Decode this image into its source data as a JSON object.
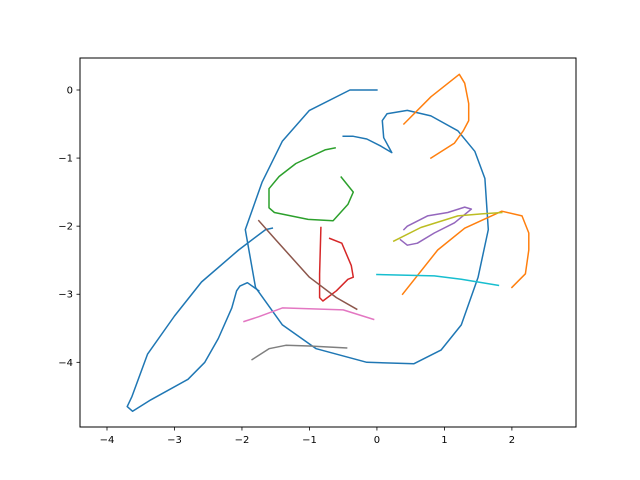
{
  "chart_data": {
    "type": "line",
    "title": "",
    "xlabel": "",
    "ylabel": "",
    "xlim": [
      -4.4,
      2.95
    ],
    "ylim": [
      -4.95,
      0.47
    ],
    "xticks": [
      -4,
      -3,
      -2,
      -1,
      0,
      1,
      2
    ],
    "xtick_labels": [
      "−4",
      "−3",
      "−2",
      "−1",
      "0",
      "1",
      "2"
    ],
    "yticks": [
      0,
      -1,
      -2,
      -3,
      -4
    ],
    "ytick_labels": [
      "0",
      "−1",
      "−2",
      "−3",
      "−4"
    ],
    "grid": false,
    "legend": "none",
    "series": [
      {
        "color": "#1f77b4",
        "points": [
          [
            0.0,
            0.0
          ],
          [
            -0.4,
            0.0
          ],
          [
            -1.0,
            -0.3
          ],
          [
            -1.4,
            -0.75
          ],
          [
            -1.7,
            -1.35
          ],
          [
            -1.95,
            -2.05
          ],
          [
            -1.8,
            -2.9
          ],
          [
            -1.4,
            -3.45
          ],
          [
            -0.9,
            -3.8
          ],
          [
            -0.15,
            -4.0
          ],
          [
            0.55,
            -4.02
          ],
          [
            0.95,
            -3.82
          ],
          [
            1.25,
            -3.45
          ],
          [
            1.5,
            -2.75
          ],
          [
            1.65,
            -2.05
          ],
          [
            1.6,
            -1.3
          ],
          [
            1.45,
            -0.9
          ],
          [
            1.2,
            -0.6
          ],
          [
            0.8,
            -0.38
          ],
          [
            0.45,
            -0.3
          ],
          [
            0.15,
            -0.35
          ],
          [
            0.08,
            -0.45
          ],
          [
            0.1,
            -0.7
          ],
          [
            0.22,
            -0.92
          ],
          [
            0.05,
            -0.82
          ],
          [
            -0.15,
            -0.72
          ],
          [
            -0.35,
            -0.68
          ],
          [
            -0.5,
            -0.68
          ]
        ]
      },
      {
        "color": "#1f77b4",
        "points": [
          [
            -1.55,
            -2.03
          ],
          [
            -1.65,
            -2.05
          ],
          [
            -2.05,
            -2.35
          ],
          [
            -2.6,
            -2.82
          ],
          [
            -3.0,
            -3.32
          ],
          [
            -3.4,
            -3.88
          ],
          [
            -3.63,
            -4.5
          ],
          [
            -3.7,
            -4.65
          ],
          [
            -3.62,
            -4.72
          ],
          [
            -3.35,
            -4.55
          ],
          [
            -2.8,
            -4.25
          ],
          [
            -2.55,
            -4.0
          ],
          [
            -2.35,
            -3.65
          ],
          [
            -2.15,
            -3.2
          ],
          [
            -2.08,
            -2.95
          ],
          [
            -2.03,
            -2.88
          ],
          [
            -1.92,
            -2.83
          ],
          [
            -1.75,
            -2.95
          ]
        ]
      },
      {
        "color": "#ff7f0e",
        "points": [
          [
            0.4,
            -0.5
          ],
          [
            0.8,
            -0.1
          ],
          [
            1.22,
            0.23
          ],
          [
            1.3,
            0.1
          ],
          [
            1.36,
            -0.2
          ],
          [
            1.36,
            -0.45
          ],
          [
            1.28,
            -0.6
          ],
          [
            1.15,
            -0.78
          ],
          [
            0.8,
            -1.0
          ]
        ]
      },
      {
        "color": "#ff7f0e",
        "points": [
          [
            0.38,
            -3.0
          ],
          [
            0.9,
            -2.35
          ],
          [
            1.3,
            -2.03
          ],
          [
            1.85,
            -1.78
          ],
          [
            2.15,
            -1.85
          ],
          [
            2.25,
            -2.1
          ],
          [
            2.25,
            -2.35
          ],
          [
            2.2,
            -2.7
          ],
          [
            2.0,
            -2.9
          ]
        ]
      },
      {
        "color": "#2ca02c",
        "points": [
          [
            -0.62,
            -0.85
          ],
          [
            -0.77,
            -0.88
          ],
          [
            -1.2,
            -1.08
          ],
          [
            -1.45,
            -1.27
          ],
          [
            -1.6,
            -1.45
          ],
          [
            -1.6,
            -1.73
          ],
          [
            -1.52,
            -1.8
          ],
          [
            -1.02,
            -1.9
          ],
          [
            -0.65,
            -1.92
          ],
          [
            -0.43,
            -1.68
          ],
          [
            -0.35,
            -1.5
          ],
          [
            -0.53,
            -1.28
          ]
        ]
      },
      {
        "color": "#d62728",
        "points": [
          [
            -0.83,
            -2.02
          ],
          [
            -0.85,
            -2.7
          ],
          [
            -0.85,
            -3.05
          ],
          [
            -0.8,
            -3.1
          ],
          [
            -0.6,
            -2.95
          ],
          [
            -0.43,
            -2.78
          ],
          [
            -0.35,
            -2.75
          ],
          [
            -0.38,
            -2.58
          ],
          [
            -0.52,
            -2.25
          ],
          [
            -0.7,
            -2.18
          ]
        ]
      },
      {
        "color": "#9467bd",
        "points": [
          [
            0.4,
            -2.05
          ],
          [
            0.45,
            -2.0
          ],
          [
            0.75,
            -1.85
          ],
          [
            1.05,
            -1.8
          ],
          [
            1.3,
            -1.72
          ],
          [
            1.4,
            -1.75
          ],
          [
            1.15,
            -1.95
          ],
          [
            0.85,
            -2.1
          ],
          [
            0.6,
            -2.25
          ],
          [
            0.45,
            -2.28
          ],
          [
            0.35,
            -2.2
          ]
        ]
      },
      {
        "color": "#8c564b",
        "points": [
          [
            -1.75,
            -1.92
          ],
          [
            -1.5,
            -2.2
          ],
          [
            -1.0,
            -2.75
          ],
          [
            -0.6,
            -3.05
          ],
          [
            -0.3,
            -3.22
          ]
        ]
      },
      {
        "color": "#e377c2",
        "points": [
          [
            -1.97,
            -3.4
          ],
          [
            -1.75,
            -3.33
          ],
          [
            -1.4,
            -3.2
          ],
          [
            -0.5,
            -3.23
          ],
          [
            -0.05,
            -3.37
          ]
        ]
      },
      {
        "color": "#7f7f7f",
        "points": [
          [
            -1.85,
            -3.96
          ],
          [
            -1.6,
            -3.8
          ],
          [
            -1.35,
            -3.75
          ],
          [
            -1.0,
            -3.76
          ],
          [
            -0.45,
            -3.79
          ]
        ]
      },
      {
        "color": "#bcbd22",
        "points": [
          [
            0.25,
            -2.22
          ],
          [
            0.65,
            -2.02
          ],
          [
            1.2,
            -1.85
          ],
          [
            1.55,
            -1.82
          ],
          [
            1.85,
            -1.8
          ]
        ]
      },
      {
        "color": "#17becf",
        "points": [
          [
            0.0,
            -2.71
          ],
          [
            0.85,
            -2.73
          ],
          [
            1.25,
            -2.78
          ],
          [
            1.8,
            -2.87
          ]
        ]
      }
    ]
  }
}
